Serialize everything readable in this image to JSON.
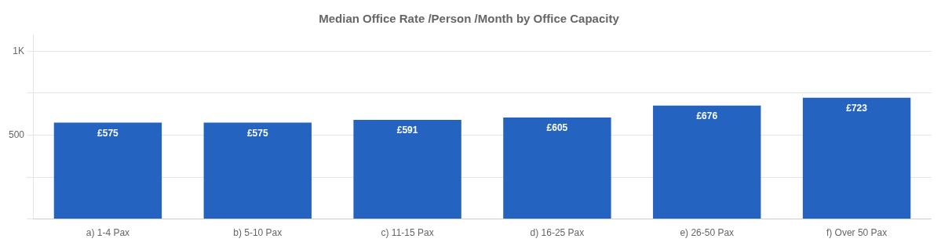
{
  "chart_data": {
    "type": "bar",
    "title": "Median Office Rate /Person /Month by Office Capacity",
    "categories": [
      "a) 1-4 Pax",
      "b) 5-10 Pax",
      "c) 11-15 Pax",
      "d) 16-25 Pax",
      "e) 26-50 Pax",
      "f) Over 50 Pax"
    ],
    "values": [
      575,
      575,
      591,
      605,
      676,
      723
    ],
    "value_labels": [
      "£575",
      "£575",
      "£591",
      "£605",
      "£676",
      "£723"
    ],
    "data_labels": true,
    "color": "#2563c0",
    "ylim": [
      0,
      1100
    ],
    "yticks": [
      {
        "value": 0,
        "label": ""
      },
      {
        "value": 250,
        "label": ""
      },
      500,
      {
        "value": 750,
        "label": ""
      },
      {
        "value": 1000,
        "label": "1K"
      }
    ],
    "grid": true
  }
}
